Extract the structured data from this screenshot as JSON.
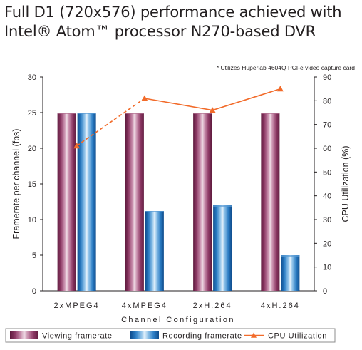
{
  "chart_data": {
    "type": "bar",
    "title_line1": "Full D1 (720x576) performance achieved with",
    "title_line2": "Intel® Atom™ processor N270-based DVR",
    "note": "* Utilizes Huperlab 4604Q PCI-e video capture card",
    "xlabel": "Channel Configuration",
    "ylabel": "Framerate per channel (fps)",
    "y2label": "CPU Utilization (%)",
    "categories": [
      "2xMPEG4",
      "4xMPEG4",
      "2xH.264",
      "4xH.264"
    ],
    "series": [
      {
        "name": "Viewing framerate",
        "axis": "left",
        "values": [
          25,
          25,
          25,
          25
        ],
        "color": "#8a3560"
      },
      {
        "name": "Recording framerate",
        "axis": "left",
        "values": [
          25,
          11.2,
          12,
          5
        ],
        "color": "#1f6fb5"
      },
      {
        "name": "CPU Utilization",
        "axis": "right",
        "type": "line",
        "values": [
          61,
          81,
          76,
          85
        ],
        "color": "#f26b2a"
      }
    ],
    "ylim": [
      0,
      30
    ],
    "yticks": [
      0,
      5,
      10,
      15,
      20,
      25,
      30
    ],
    "y2lim": [
      0,
      90
    ],
    "y2ticks": [
      0,
      10,
      20,
      30,
      40,
      50,
      60,
      70,
      80,
      90
    ],
    "grid": false,
    "legend_position": "bottom"
  }
}
